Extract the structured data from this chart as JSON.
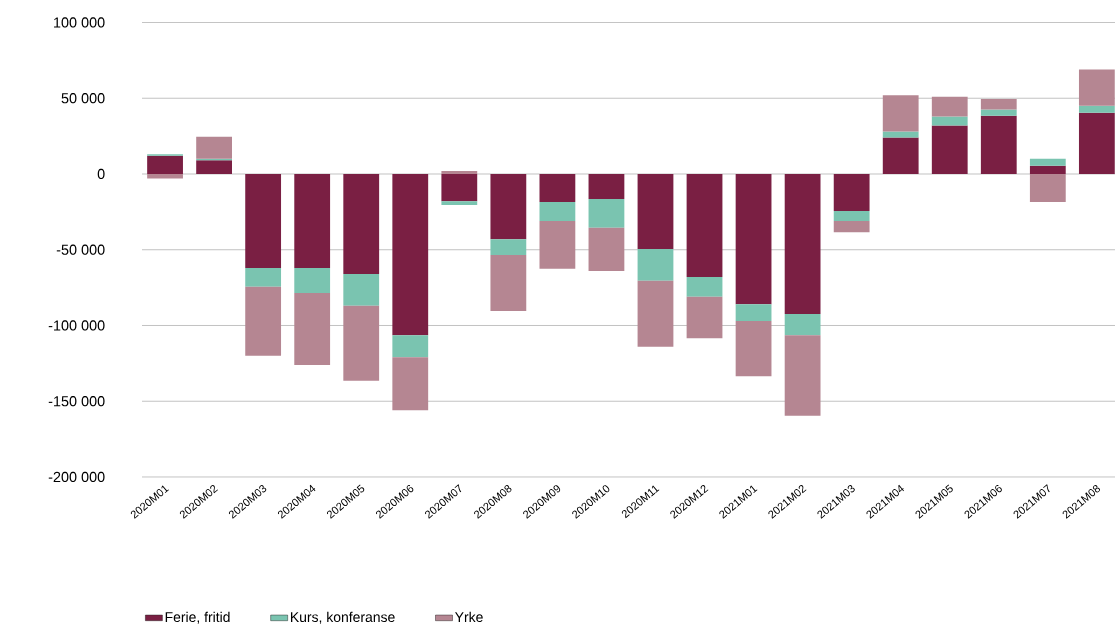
{
  "chart_data": {
    "type": "bar",
    "stacked": true,
    "categories": [
      "2020M01",
      "2020M02",
      "2020M03",
      "2020M04",
      "2020M05",
      "2020M06",
      "2020M07",
      "2020M08",
      "2020M09",
      "2020M10",
      "2020M11",
      "2020M12",
      "2021M01",
      "2021M02",
      "2021M03",
      "2021M04",
      "2021M05",
      "2021M06",
      "2021M07",
      "2021M08"
    ],
    "series": [
      {
        "name": "Ferie, fritid",
        "color": "#7a1f43",
        "values": [
          12000,
          9000,
          -62000,
          -62000,
          -66000,
          -106500,
          -18000,
          -43000,
          -18500,
          -16500,
          -49500,
          -68000,
          -86000,
          -92500,
          -24500,
          24000,
          32000,
          38500,
          5500,
          40500
        ]
      },
      {
        "name": "Kurs, konferanse",
        "color": "#7ac4b0",
        "values": [
          1000,
          1000,
          -12500,
          -16500,
          -21000,
          -14500,
          -2500,
          -10500,
          -12500,
          -19000,
          -21000,
          -13000,
          -11000,
          -14000,
          -6500,
          4000,
          6000,
          4000,
          4500,
          4500
        ]
      },
      {
        "name": "Yrke",
        "color": "#b58692",
        "values": [
          -3000,
          14500,
          -45500,
          -47500,
          -49500,
          -35000,
          2000,
          -37000,
          -31500,
          -28500,
          -43500,
          -27500,
          -36500,
          -53000,
          -7500,
          24000,
          13000,
          7000,
          -18500,
          24000
        ]
      }
    ],
    "ylim": [
      -200000,
      100000
    ],
    "yticks": [
      {
        "value": -200000,
        "label": "-200 000"
      },
      {
        "value": -150000,
        "label": "-150 000"
      },
      {
        "value": -100000,
        "label": "-100 000"
      },
      {
        "value": -50000,
        "label": "-50 000"
      },
      0,
      {
        "value": 50000,
        "label": "50 000"
      },
      {
        "value": 100000,
        "label": "100 000"
      }
    ],
    "grid": "y",
    "legend": "bottom"
  }
}
